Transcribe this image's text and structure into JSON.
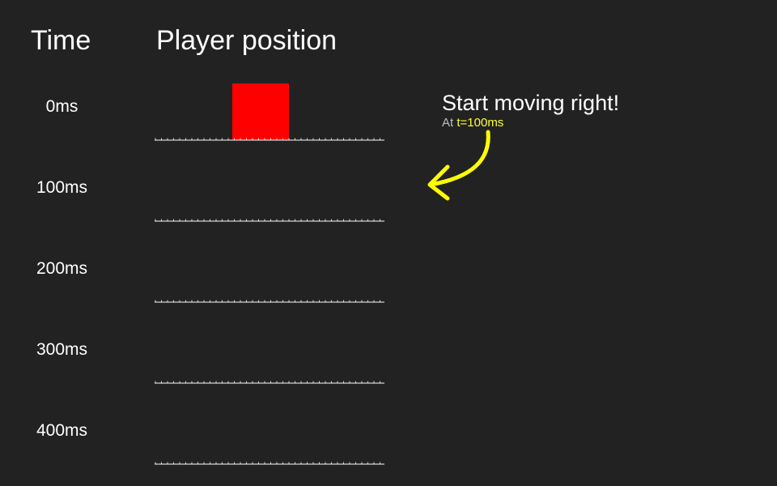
{
  "headers": {
    "time": "Time",
    "position": "Player position"
  },
  "rows": [
    {
      "time_label": "0ms",
      "player_visible": true
    },
    {
      "time_label": "100ms",
      "player_visible": false
    },
    {
      "time_label": "200ms",
      "player_visible": false
    },
    {
      "time_label": "300ms",
      "player_visible": false
    },
    {
      "time_label": "400ms",
      "player_visible": false
    }
  ],
  "annotation": {
    "title": "Start moving right!",
    "sub_prefix": "At",
    "sub_highlight": "t=100ms"
  },
  "colors": {
    "background": "#222222",
    "text": "#ffffff",
    "player": "#ff0000",
    "highlight": "#ffff33",
    "arrow": "#ffff00",
    "subtext": "#bfbfbf"
  }
}
